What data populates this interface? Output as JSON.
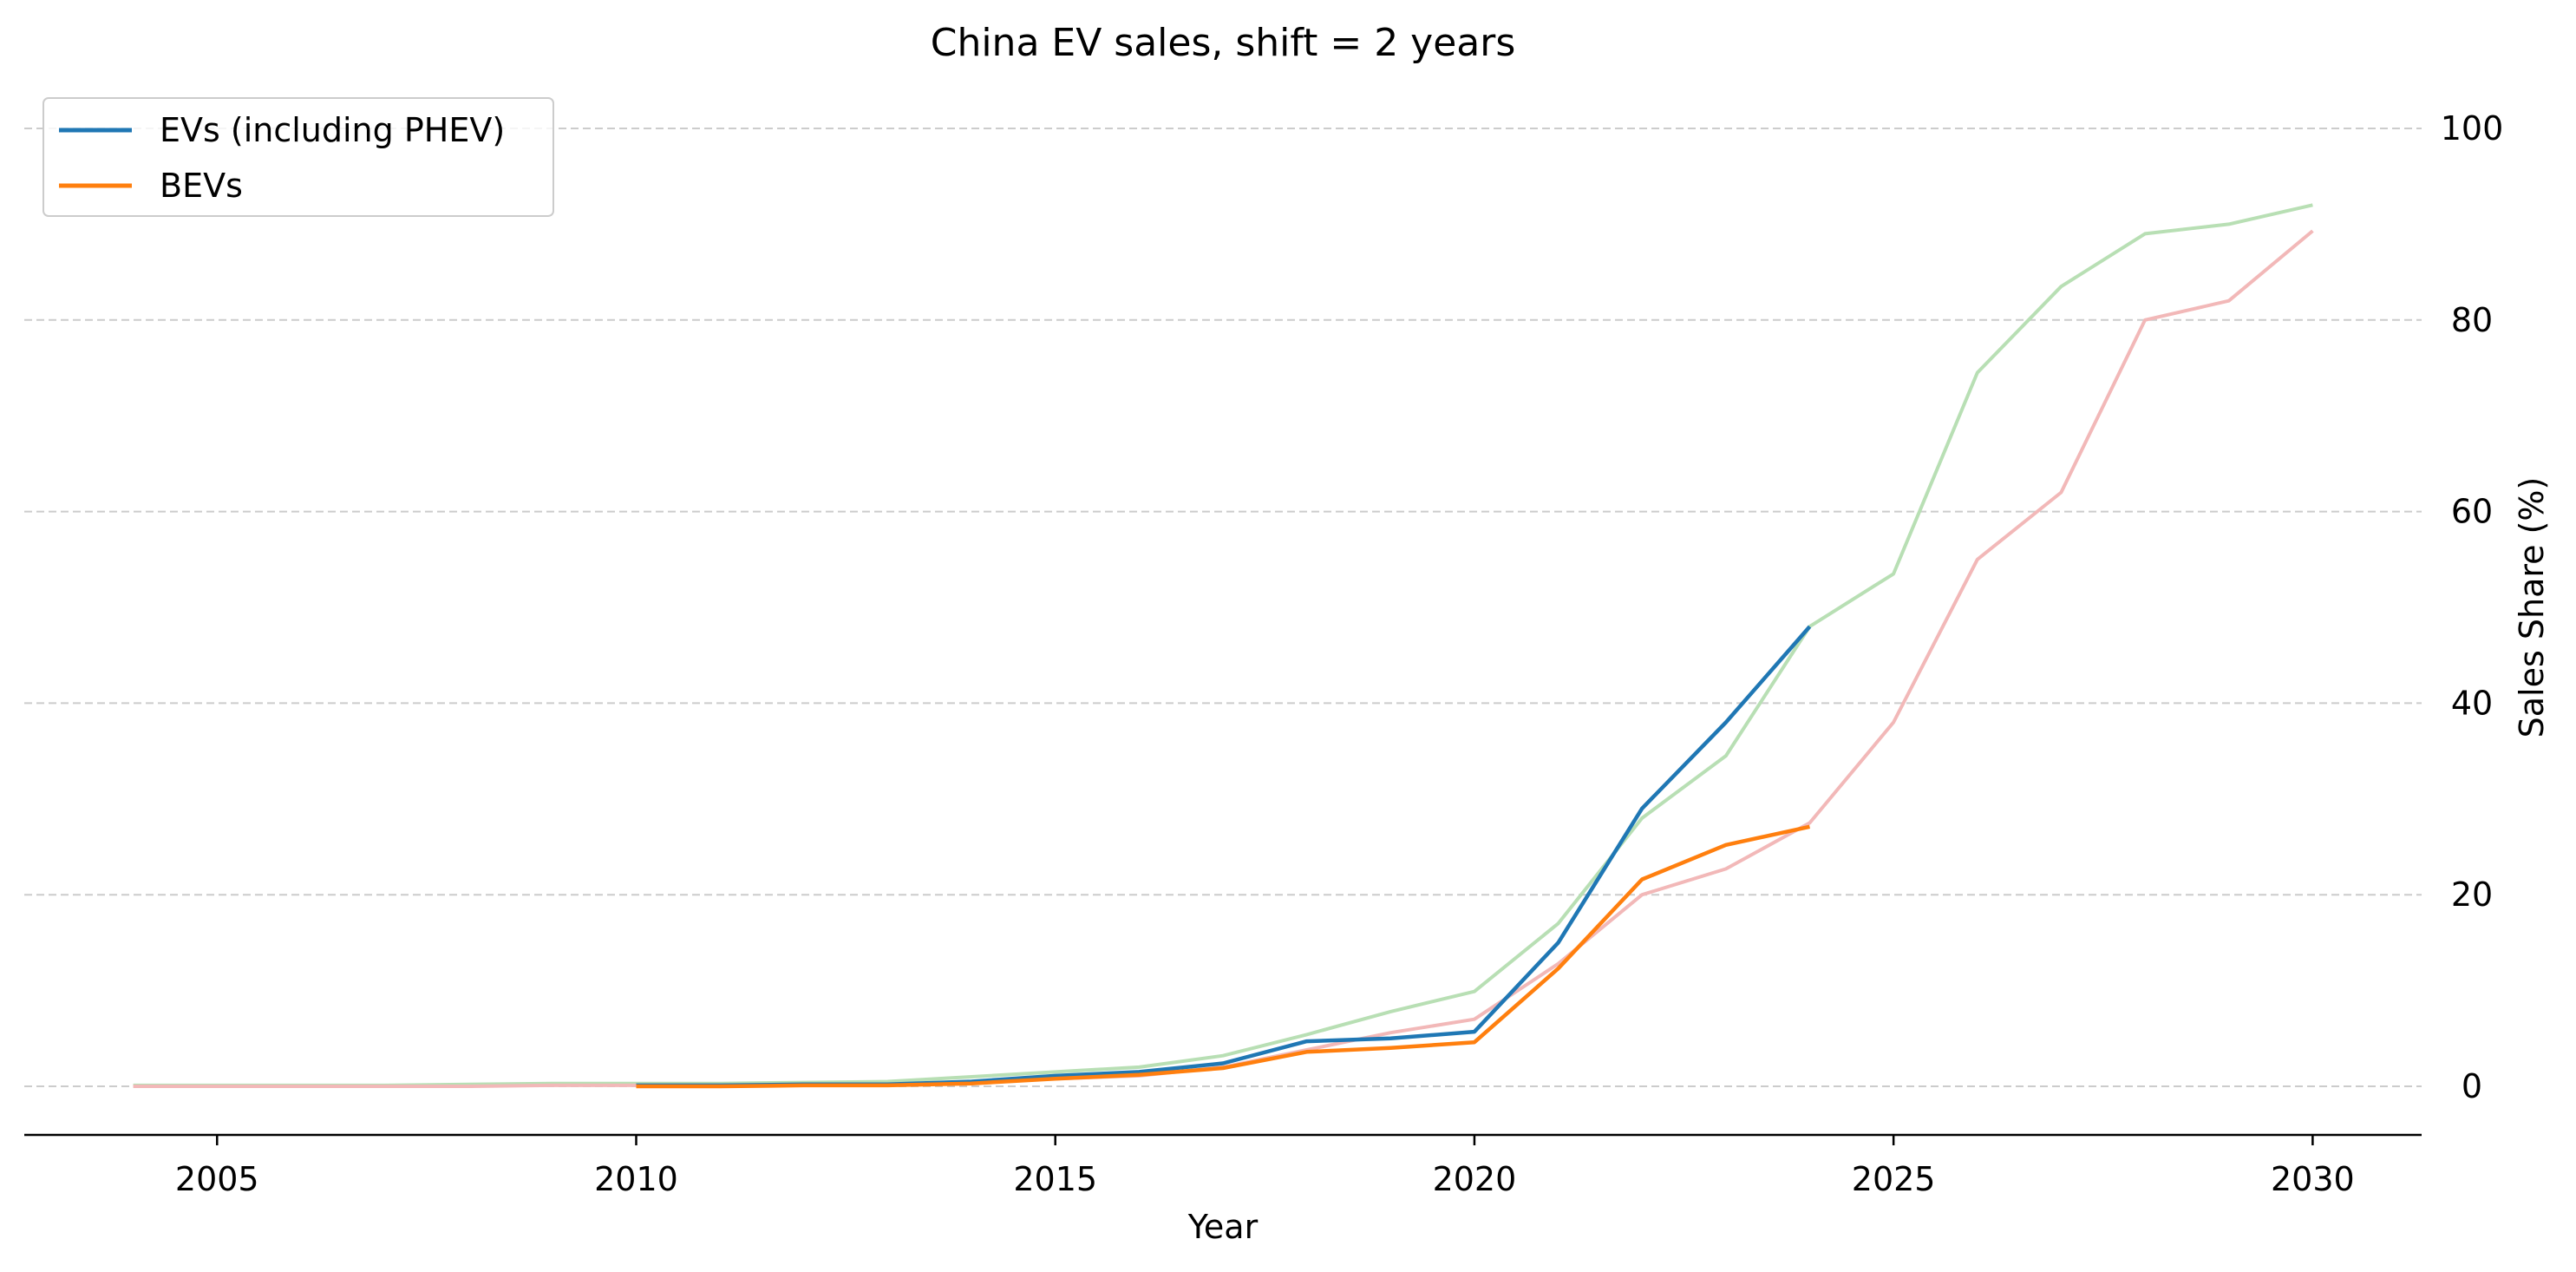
{
  "chart_data": {
    "type": "line",
    "title": "China EV sales, shift = 2 years",
    "xlabel": "Year",
    "ylabel": "Sales Share (%)",
    "xlim": [
      2002.7,
      2031.3
    ],
    "ylim": [
      -5,
      100
    ],
    "x_ticks": [
      "2005",
      "2010",
      "2015",
      "2020",
      "2025",
      "2030"
    ],
    "y_ticks": [
      "0",
      "20",
      "40",
      "60",
      "80",
      "100"
    ],
    "y_axis_side": "right",
    "grid": "horizontal dashed",
    "legend_position": "top-left",
    "series": [
      {
        "name": "EVs (including PHEV)",
        "color": "#1f77b4",
        "in_legend": true,
        "x": [
          2010,
          2011,
          2012,
          2013,
          2014,
          2015,
          2016,
          2017,
          2018,
          2019,
          2020,
          2021,
          2022,
          2023,
          2024
        ],
        "values": [
          0.1,
          0.1,
          0.2,
          0.2,
          0.5,
          1.1,
          1.5,
          2.4,
          4.7,
          5.0,
          5.7,
          15.0,
          29.0,
          38.0,
          48.0
        ]
      },
      {
        "name": "BEVs",
        "color": "#ff7f0e",
        "in_legend": true,
        "x": [
          2010,
          2011,
          2012,
          2013,
          2014,
          2015,
          2016,
          2017,
          2018,
          2019,
          2020,
          2021,
          2022,
          2023,
          2024
        ],
        "values": [
          0.0,
          0.0,
          0.1,
          0.1,
          0.3,
          0.8,
          1.2,
          1.9,
          3.6,
          4.0,
          4.6,
          12.3,
          21.6,
          25.2,
          27.1
        ]
      },
      {
        "color": "#b8dfb4",
        "in_legend": false,
        "x": [
          2004,
          2005,
          2006,
          2007,
          2008,
          2009,
          2010,
          2011,
          2012,
          2013,
          2014,
          2015,
          2016,
          2017,
          2018,
          2019,
          2020,
          2021,
          2022,
          2023,
          2024,
          2025,
          2026,
          2027,
          2028,
          2029,
          2030
        ],
        "values": [
          0.1,
          0.1,
          0.1,
          0.1,
          0.2,
          0.3,
          0.3,
          0.3,
          0.4,
          0.5,
          1.0,
          1.5,
          2.0,
          3.2,
          5.4,
          7.8,
          9.9,
          17.0,
          28.0,
          34.5,
          48.0,
          53.5,
          74.5,
          83.5,
          89.0,
          90.0,
          92.0
        ]
      },
      {
        "color": "#f2b8b8",
        "in_legend": false,
        "x": [
          2004,
          2005,
          2006,
          2007,
          2008,
          2009,
          2010,
          2011,
          2012,
          2013,
          2014,
          2015,
          2016,
          2017,
          2018,
          2019,
          2020,
          2021,
          2022,
          2023,
          2024,
          2025,
          2026,
          2027,
          2028,
          2029,
          2030
        ],
        "values": [
          0.0,
          0.0,
          0.0,
          0.0,
          0.0,
          0.1,
          0.1,
          0.1,
          0.1,
          0.2,
          0.4,
          0.8,
          1.1,
          2.0,
          3.8,
          5.6,
          7.0,
          12.8,
          20.0,
          22.7,
          27.5,
          38.0,
          55.0,
          62.0,
          80.0,
          82.0,
          89.3
        ]
      }
    ]
  }
}
